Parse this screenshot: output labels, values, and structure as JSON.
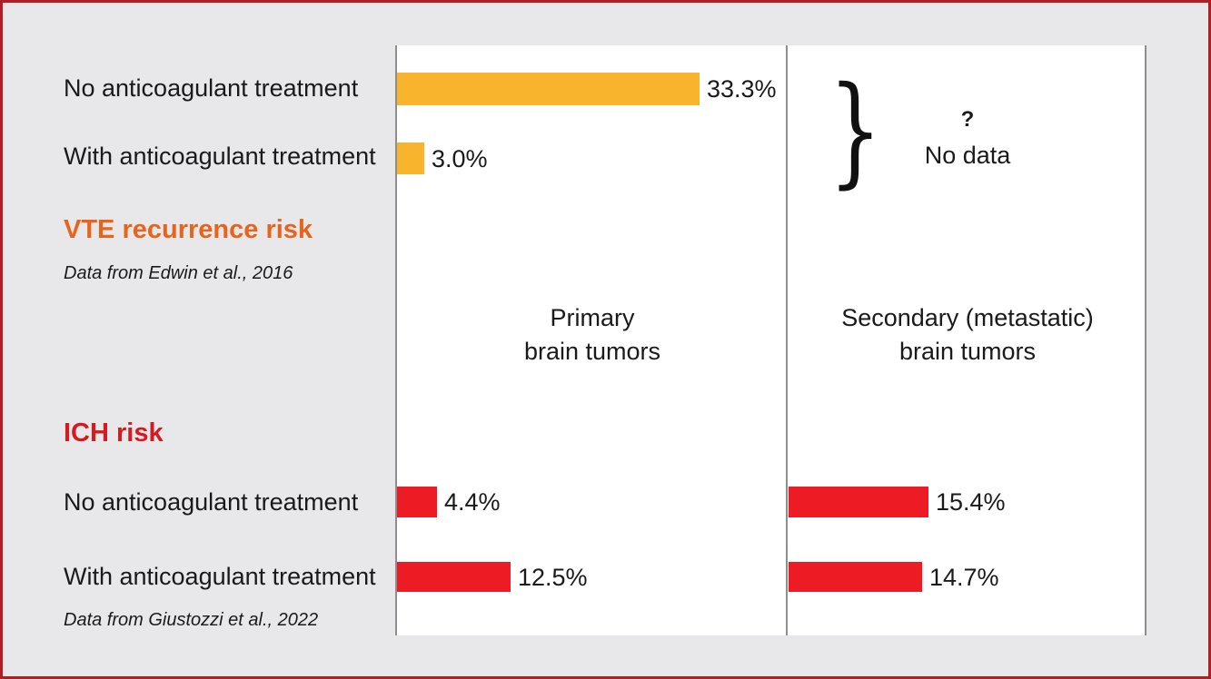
{
  "colors": {
    "vte": "#f7b42c",
    "ich": "#ed1c24",
    "vte_title": "#e8641c",
    "ich_title": "#d71920"
  },
  "vte": {
    "title": "VTE recurrence risk",
    "source": "Data from Edwin et al., 2016",
    "rows": [
      "No anticoagulant treatment",
      "With anticoagulant treatment"
    ]
  },
  "ich": {
    "title": "ICH risk",
    "source": "Data from Giustozzi et al., 2022",
    "rows": [
      "No anticoagulant treatment",
      "With anticoagulant treatment"
    ]
  },
  "panels": {
    "primary": {
      "line1": "Primary",
      "line2": "brain tumors"
    },
    "secondary": {
      "line1": "Secondary (metastatic)",
      "line2": "brain tumors"
    }
  },
  "no_data": {
    "mark": "?",
    "text": "No data"
  },
  "chart_data": [
    {
      "type": "bar",
      "title": "VTE recurrence risk",
      "categories": [
        "No anticoagulant treatment",
        "With anticoagulant treatment"
      ],
      "series": [
        {
          "name": "Primary brain tumors",
          "values": [
            33.3,
            3.0
          ],
          "labels": [
            "33.3%",
            "3.0%"
          ]
        }
      ],
      "unit": "%",
      "orientation": "horizontal"
    },
    {
      "type": "bar",
      "title": "ICH risk",
      "categories": [
        "No anticoagulant treatment",
        "With anticoagulant treatment"
      ],
      "series": [
        {
          "name": "Primary brain tumors",
          "values": [
            4.4,
            12.5
          ],
          "labels": [
            "4.4%",
            "12.5%"
          ]
        },
        {
          "name": "Secondary (metastatic) brain tumors",
          "values": [
            15.4,
            14.7
          ],
          "labels": [
            "15.4%",
            "14.7%"
          ]
        }
      ],
      "unit": "%",
      "orientation": "horizontal"
    }
  ]
}
